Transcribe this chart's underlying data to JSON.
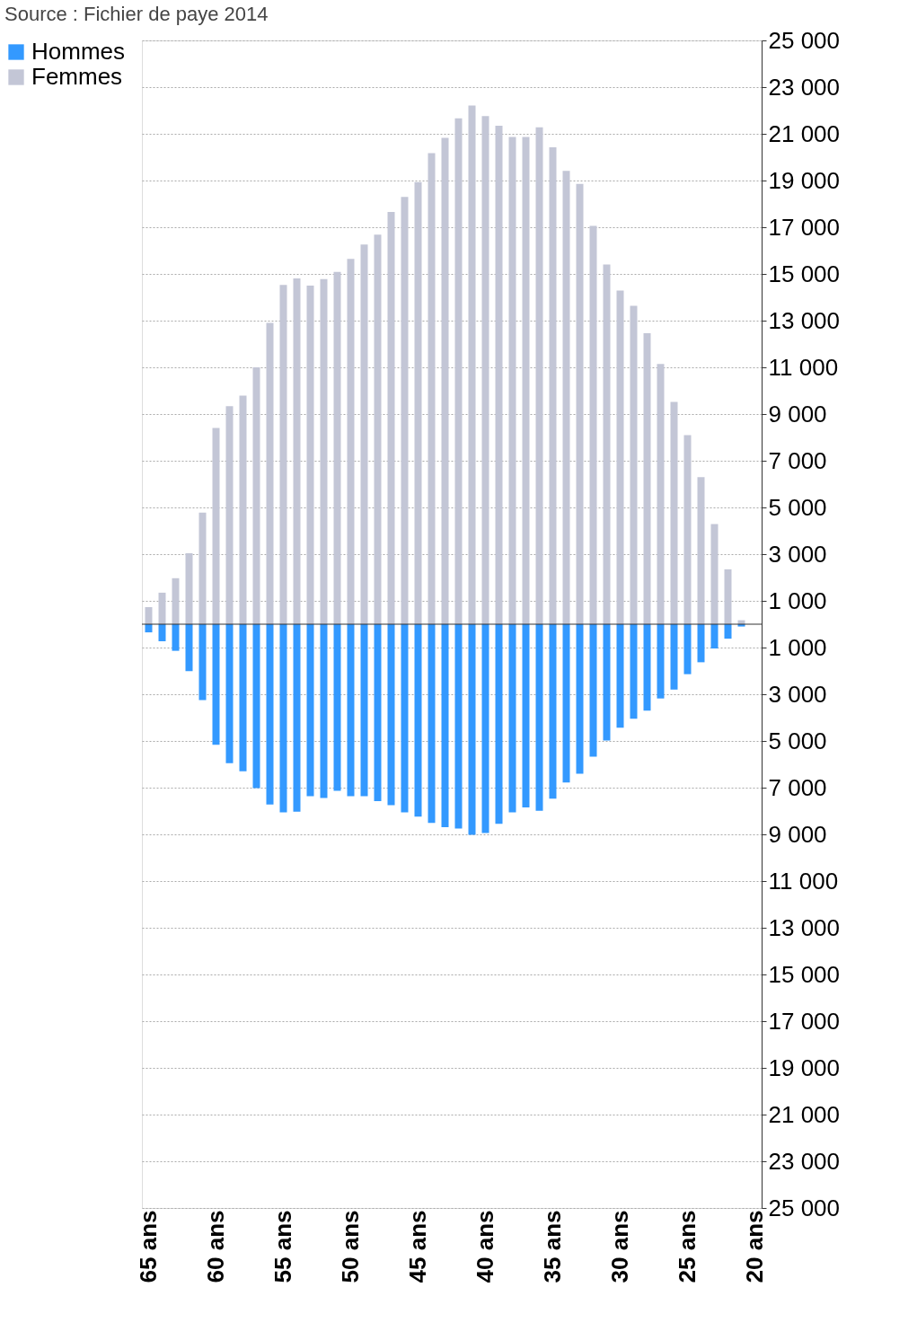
{
  "chart_data": {
    "type": "bar",
    "annotations": [
      "Source : Fichier de paye 2014"
    ],
    "categories": [
      "65 ans",
      null,
      null,
      null,
      null,
      "60 ans",
      null,
      null,
      null,
      null,
      "55 ans",
      null,
      null,
      null,
      null,
      "50 ans",
      null,
      null,
      null,
      null,
      "45 ans",
      null,
      null,
      null,
      null,
      "40 ans",
      null,
      null,
      null,
      null,
      "35 ans",
      null,
      null,
      null,
      null,
      "30 ans",
      null,
      null,
      null,
      null,
      "25 ans",
      null,
      null,
      null,
      null,
      "20 ans"
    ],
    "series": [
      {
        "name": "Hommes",
        "color": "#3399ff",
        "values": [
          -350,
          -730,
          -1140,
          -2010,
          -3250,
          -5160,
          -5950,
          -6300,
          -7020,
          -7720,
          -8060,
          -8030,
          -7370,
          -7440,
          -7130,
          -7370,
          -7370,
          -7580,
          -7750,
          -8060,
          -8240,
          -8510,
          -8690,
          -8750,
          -9020,
          -8940,
          -8550,
          -8060,
          -7850,
          -7990,
          -7470,
          -6780,
          -6400,
          -5670,
          -4980,
          -4430,
          -4050,
          -3700,
          -3180,
          -2800,
          -2140,
          -1630,
          -1040,
          -620,
          -100,
          null
        ]
      },
      {
        "name": "Femmes",
        "color": "#c3c6d6",
        "values": [
          730,
          1350,
          1970,
          3040,
          4780,
          8400,
          9340,
          9790,
          11000,
          12900,
          14530,
          14810,
          14500,
          14780,
          15090,
          15640,
          16260,
          16680,
          17650,
          18300,
          18930,
          20170,
          20830,
          21660,
          22210,
          21760,
          21350,
          20870,
          20870,
          21280,
          20420,
          19410,
          18860,
          17060,
          15400,
          14290,
          13630,
          12460,
          11140,
          9520,
          8100,
          6300,
          4290,
          2350,
          170,
          null
        ]
      }
    ],
    "ylim": [
      -25000,
      25000
    ],
    "yticks": [
      {
        "value": -25000,
        "label": "25 000"
      },
      {
        "value": -23000,
        "label": "23 000"
      },
      {
        "value": -21000,
        "label": "21 000"
      },
      {
        "value": -19000,
        "label": "19 000"
      },
      {
        "value": -17000,
        "label": "17 000"
      },
      {
        "value": -15000,
        "label": "15 000"
      },
      {
        "value": -13000,
        "label": "13 000"
      },
      {
        "value": -11000,
        "label": "11 000"
      },
      {
        "value": -9000,
        "label": "9 000"
      },
      {
        "value": -7000,
        "label": "7 000"
      },
      {
        "value": -5000,
        "label": "5 000"
      },
      {
        "value": -3000,
        "label": "3 000"
      },
      {
        "value": -1000,
        "label": "1 000"
      },
      {
        "value": 1000,
        "label": "1 000"
      },
      {
        "value": 3000,
        "label": "3 000"
      },
      {
        "value": 5000,
        "label": "5 000"
      },
      {
        "value": 7000,
        "label": "7 000"
      },
      {
        "value": 9000,
        "label": "9 000"
      },
      {
        "value": 11000,
        "label": "11 000"
      },
      {
        "value": 13000,
        "label": "13 000"
      },
      {
        "value": 15000,
        "label": "15 000"
      },
      {
        "value": 17000,
        "label": "17 000"
      },
      {
        "value": 19000,
        "label": "19 000"
      },
      {
        "value": 21000,
        "label": "21 000"
      },
      {
        "value": 23000,
        "label": "23 000"
      },
      {
        "value": 25000,
        "label": "25 000"
      }
    ],
    "stacked": true,
    "grid": "y",
    "legend": "left"
  }
}
